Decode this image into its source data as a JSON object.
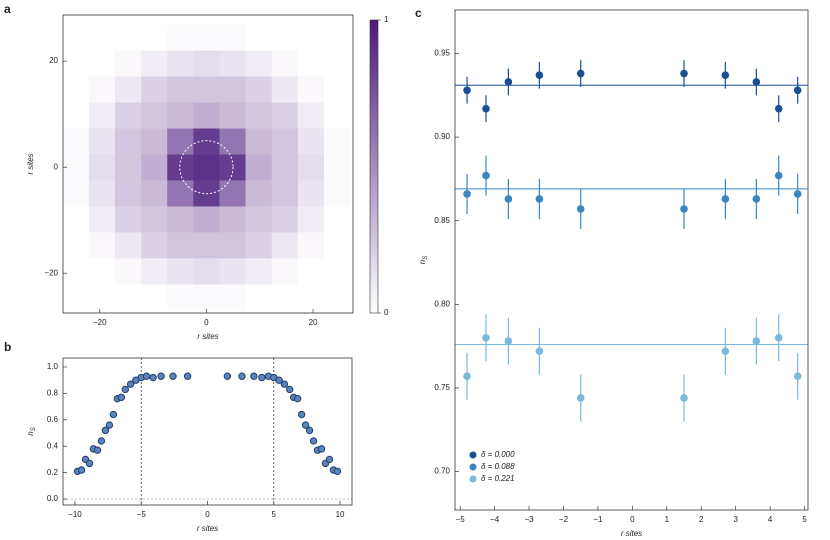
{
  "chart_data": [
    {
      "type": "heatmap",
      "panel": "a",
      "xlabel": "r sites",
      "ylabel": "r sites",
      "x": [
        -24.5,
        -19.6,
        -14.7,
        -9.8,
        -4.9,
        0,
        4.9,
        9.8,
        14.7,
        19.6,
        24.5
      ],
      "y": [
        -24.5,
        -19.6,
        -14.7,
        -9.8,
        -4.9,
        0,
        4.9,
        9.8,
        14.7,
        19.6,
        24.5
      ],
      "z": [
        [
          0,
          0,
          0,
          0,
          0.02,
          0.02,
          0.02,
          0,
          0,
          0,
          0
        ],
        [
          0,
          0,
          0.03,
          0.08,
          0.12,
          0.15,
          0.12,
          0.08,
          0.03,
          0,
          0
        ],
        [
          0,
          0.03,
          0.1,
          0.2,
          0.25,
          0.25,
          0.25,
          0.2,
          0.1,
          0.03,
          0
        ],
        [
          0,
          0.08,
          0.2,
          0.25,
          0.3,
          0.35,
          0.3,
          0.25,
          0.2,
          0.08,
          0
        ],
        [
          0.02,
          0.12,
          0.25,
          0.3,
          0.6,
          0.85,
          0.6,
          0.3,
          0.25,
          0.12,
          0.02
        ],
        [
          0.02,
          0.15,
          0.25,
          0.35,
          0.85,
          0.9,
          0.85,
          0.35,
          0.25,
          0.15,
          0.02
        ],
        [
          0.02,
          0.12,
          0.25,
          0.3,
          0.6,
          0.85,
          0.6,
          0.3,
          0.25,
          0.12,
          0.02
        ],
        [
          0,
          0.08,
          0.2,
          0.25,
          0.3,
          0.35,
          0.3,
          0.25,
          0.2,
          0.08,
          0
        ],
        [
          0,
          0.03,
          0.1,
          0.2,
          0.25,
          0.25,
          0.25,
          0.2,
          0.1,
          0.03,
          0
        ],
        [
          0,
          0,
          0.03,
          0.08,
          0.12,
          0.15,
          0.12,
          0.08,
          0.03,
          0,
          0
        ],
        [
          0,
          0,
          0,
          0,
          0.02,
          0.02,
          0.02,
          0,
          0,
          0,
          0
        ]
      ],
      "color": "#4b1a7d",
      "clim": [
        0,
        1
      ],
      "cticks": [
        0,
        1
      ],
      "circle": {
        "x": 0,
        "y": 0,
        "r": 5
      },
      "xlim": [
        -26.9,
        27.5
      ],
      "ylim": [
        -27.5,
        28.7
      ],
      "xticks": [
        {
          "value": -20,
          "label": "−20"
        },
        0,
        20
      ],
      "yticks": [
        {
          "value": -20,
          "label": "−20"
        },
        0,
        20
      ]
    },
    {
      "type": "scatter",
      "panel": "b",
      "xlabel": "r sites",
      "ylabel": "n",
      "ylabel_sub": "S",
      "x": [
        -9.8,
        -9.5,
        -9.2,
        -8.9,
        -8.6,
        -8.3,
        -8.0,
        -7.7,
        -7.4,
        -7.1,
        -6.8,
        -6.5,
        -6.2,
        -5.8,
        -5.4,
        -5.0,
        -4.6,
        -4.1,
        -3.5,
        -2.6,
        -1.5,
        1.5,
        2.6,
        3.5,
        4.1,
        4.6,
        5.0,
        5.4,
        5.8,
        6.2,
        6.5,
        6.8,
        7.1,
        7.4,
        7.7,
        8.0,
        8.3,
        8.6,
        8.9,
        9.2,
        9.5,
        9.8
      ],
      "values": [
        0.21,
        0.22,
        0.3,
        0.27,
        0.38,
        0.37,
        0.44,
        0.52,
        0.56,
        0.64,
        0.76,
        0.77,
        0.83,
        0.87,
        0.9,
        0.92,
        0.93,
        0.92,
        0.93,
        0.93,
        0.93,
        0.93,
        0.93,
        0.93,
        0.92,
        0.93,
        0.92,
        0.9,
        0.87,
        0.83,
        0.77,
        0.76,
        0.64,
        0.56,
        0.52,
        0.44,
        0.37,
        0.38,
        0.27,
        0.3,
        0.22,
        0.21
      ],
      "color": "#5b85b8",
      "vlines": [
        -5,
        5
      ],
      "hlines": [
        0
      ],
      "xlim": [
        -10.9,
        10.9
      ],
      "ylim": [
        -0.045,
        1.068
      ],
      "xticks": [
        {
          "value": -10,
          "label": "−10"
        },
        {
          "value": -5,
          "label": "−5"
        },
        0,
        5,
        10
      ],
      "yticks": [
        {
          "value": 0,
          "label": "0.0"
        },
        0.2,
        0.4,
        0.6,
        0.8,
        {
          "value": 1,
          "label": "1.0"
        }
      ]
    },
    {
      "type": "errorbar",
      "panel": "c",
      "xlabel": "r sites",
      "ylabel": "n",
      "ylabel_sub": "S",
      "x": [
        -4.8,
        -4.25,
        -3.6,
        -2.7,
        -1.5,
        1.5,
        2.7,
        3.6,
        4.25,
        4.8
      ],
      "series": [
        {
          "name": "δ = 0.000",
          "color": "#1a4f93",
          "ref": 0.931,
          "values": [
            0.928,
            0.917,
            0.933,
            0.937,
            0.938,
            0.938,
            0.937,
            0.933,
            0.917,
            0.928
          ],
          "errors": [
            0.008,
            0.008,
            0.008,
            0.008,
            0.008,
            0.008,
            0.008,
            0.008,
            0.008,
            0.008
          ]
        },
        {
          "name": "δ = 0.088",
          "color": "#3a86c4",
          "ref": 0.869,
          "values": [
            0.866,
            0.877,
            0.863,
            0.863,
            0.857,
            0.857,
            0.863,
            0.863,
            0.877,
            0.866
          ],
          "errors": [
            0.012,
            0.012,
            0.012,
            0.012,
            0.012,
            0.012,
            0.012,
            0.012,
            0.012,
            0.012
          ]
        },
        {
          "name": "δ = 0.221",
          "color": "#7ab8dc",
          "ref": 0.776,
          "values": [
            0.757,
            0.78,
            0.778,
            0.772,
            0.744,
            0.744,
            0.772,
            0.778,
            0.78,
            0.757
          ],
          "errors": [
            0.014,
            0.014,
            0.014,
            0.014,
            0.014,
            0.014,
            0.014,
            0.014,
            0.014,
            0.014
          ]
        }
      ],
      "legend": "lower left",
      "xlim": [
        -5.15,
        5.1
      ],
      "ylim": [
        0.677,
        0.976
      ],
      "xticks": [
        {
          "value": -5,
          "label": "−5"
        },
        {
          "value": -4,
          "label": "−4"
        },
        {
          "value": -3,
          "label": "−3"
        },
        {
          "value": -2,
          "label": "−2"
        },
        {
          "value": -1,
          "label": "−1"
        },
        0,
        1,
        2,
        3,
        4,
        5
      ],
      "yticks": [
        {
          "value": 0.7,
          "label": "0.70"
        },
        0.75,
        {
          "value": 0.8,
          "label": "0.80"
        },
        0.85,
        {
          "value": 0.9,
          "label": "0.90"
        },
        0.95
      ]
    }
  ]
}
